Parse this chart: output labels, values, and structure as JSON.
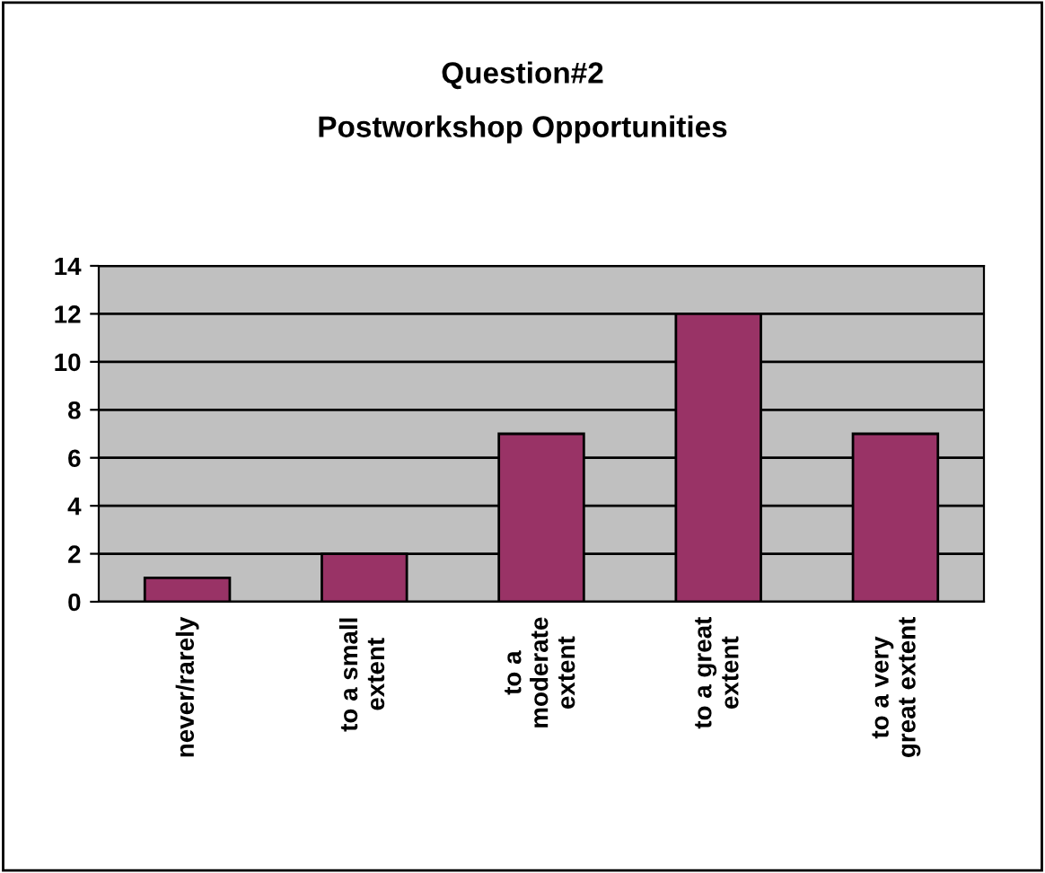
{
  "chart_data": {
    "type": "bar",
    "title": "Question#2",
    "subtitle": "Postworkshop Opportunities",
    "categories": [
      "never/rarely",
      "to a small\nextent",
      "to a\nmoderate\nextent",
      "to a great\nextent",
      "to a very\ngreat extent"
    ],
    "values": [
      1,
      2,
      7,
      12,
      7
    ],
    "color": "#993366",
    "ylim": [
      0,
      14
    ],
    "yticks": [
      0,
      2,
      4,
      6,
      8,
      10,
      12,
      14
    ],
    "grid": "y",
    "legend": false
  }
}
